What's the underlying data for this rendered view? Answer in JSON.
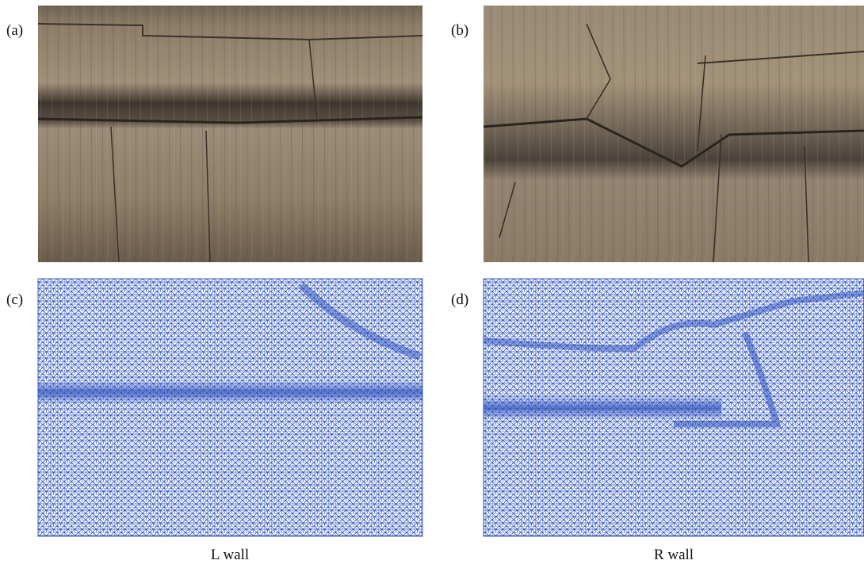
{
  "panels": [
    {
      "label": "(a)"
    },
    {
      "label": "(b)"
    },
    {
      "label": "(c)"
    },
    {
      "label": "(d)"
    }
  ],
  "captions": [
    "L wall",
    "R wall"
  ]
}
